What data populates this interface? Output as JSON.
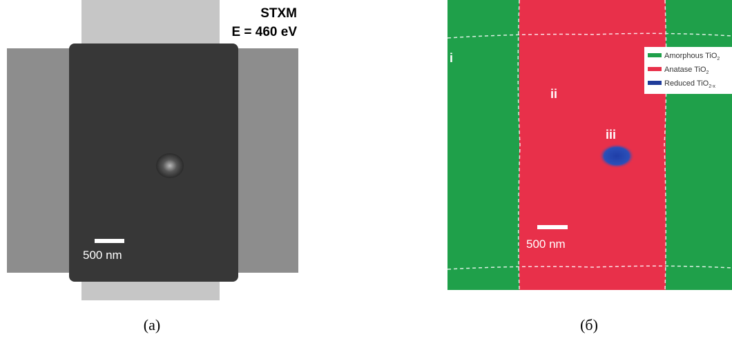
{
  "panel_a": {
    "heading": [
      "STXM",
      "E = 460 eV"
    ],
    "scale_label": "500 nm",
    "caption": "(a)"
  },
  "panel_b": {
    "region_labels": [
      "i",
      "ii",
      "iii"
    ],
    "legend": [
      {
        "text": "Amorphous TiO",
        "sub": "2",
        "color": "#1fa04a"
      },
      {
        "text": "Anatase TiO",
        "sub": "2",
        "color": "#e8304a"
      },
      {
        "text": "Reduced TiO",
        "sub": "2-x",
        "color": "#1f3c9a"
      }
    ],
    "scale_label": "500 nm",
    "caption": "(б)"
  }
}
